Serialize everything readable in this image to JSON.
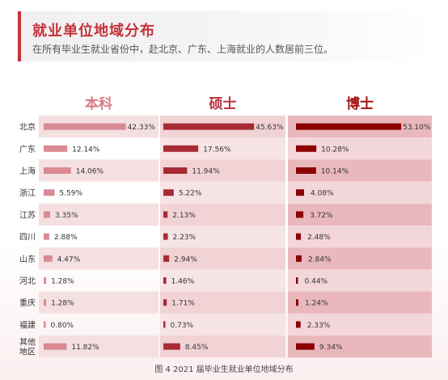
{
  "header": {
    "title": "就业单位地域分布",
    "subtitle": "在所有毕业生就业省份中，赴北京、广东、上海就业的人数居前三位。"
  },
  "caption": "图 4   2021 届毕业生就业单位地域分布",
  "colors": {
    "accent": "#c5323a",
    "undergrad_bar": "#d98a94",
    "master_bar": "#a82b34",
    "phd_bar": "#8b0000",
    "undergrad_head": "#d97a84",
    "master_head": "#b8323c",
    "phd_head": "#a01010"
  },
  "chart_data": {
    "type": "bar",
    "orientation": "horizontal",
    "categories": [
      "北京",
      "广东",
      "上海",
      "浙江",
      "江苏",
      "四川",
      "山东",
      "河北",
      "重庆",
      "福建",
      "其他地区"
    ],
    "category_display": [
      [
        "北京"
      ],
      [
        "广东"
      ],
      [
        "上海"
      ],
      [
        "浙江"
      ],
      [
        "江苏"
      ],
      [
        "四川"
      ],
      [
        "山东"
      ],
      [
        "河北"
      ],
      [
        "重庆"
      ],
      [
        "福建"
      ],
      [
        "其他",
        "地区"
      ]
    ],
    "series": [
      {
        "name": "本科",
        "values": [
          42.33,
          12.14,
          14.06,
          5.59,
          3.35,
          2.88,
          4.47,
          1.28,
          1.28,
          0.8,
          11.82
        ]
      },
      {
        "name": "硕士",
        "values": [
          45.63,
          17.56,
          11.94,
          5.22,
          2.13,
          2.23,
          2.94,
          1.46,
          1.71,
          0.73,
          8.45
        ]
      },
      {
        "name": "博士",
        "values": [
          53.1,
          10.28,
          10.14,
          4.08,
          3.72,
          2.48,
          2.84,
          0.44,
          1.24,
          2.33,
          9.34
        ]
      }
    ],
    "value_suffix": "%"
  }
}
